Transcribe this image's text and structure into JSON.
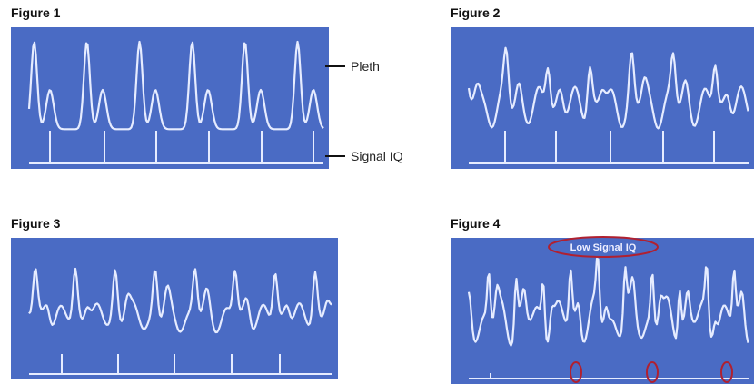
{
  "figures": [
    {
      "label": "Figure 1"
    },
    {
      "label": "Figure 2"
    },
    {
      "label": "Figure 3"
    },
    {
      "label": "Figure 4",
      "annotation": "Low Signal IQ"
    }
  ],
  "callouts": {
    "pleth": "Pleth",
    "signal_iq": "Signal IQ"
  }
}
